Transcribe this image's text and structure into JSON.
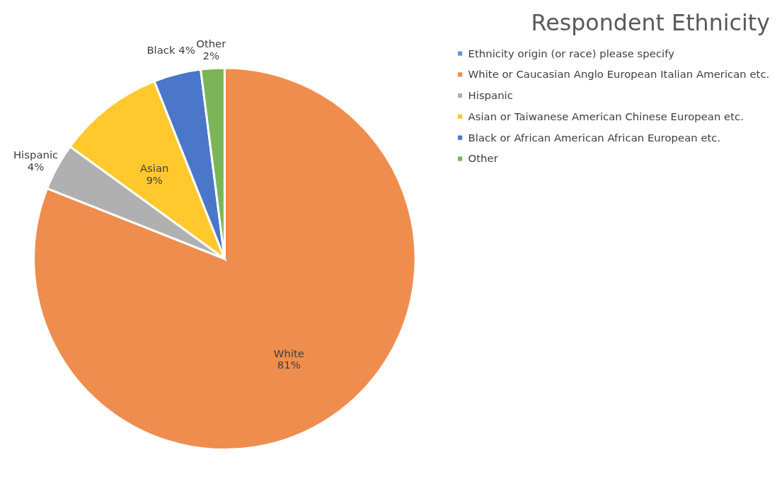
{
  "chart_data": {
    "type": "pie",
    "title": "Respondent Ethnicity",
    "categories": [
      "Ethnicity origin (or race) please specify",
      "White or Caucasian Anglo European Italian American etc.",
      "Hispanic",
      "Asian or Taiwanese American Chinese European etc.",
      "Black or African American African European etc.",
      "Other"
    ],
    "values": [
      0,
      81,
      4,
      9,
      4,
      2
    ],
    "colors": [
      "#5b9bd5",
      "#ef8d4e",
      "#b0b0b0",
      "#ffc92e",
      "#4a77c9",
      "#7ab657"
    ],
    "value_labels": [
      null,
      "White\n81%",
      "Hispanic\n4%",
      "Asian\n9%",
      "Black 4%",
      "Other\n2%"
    ],
    "legend": "right"
  }
}
